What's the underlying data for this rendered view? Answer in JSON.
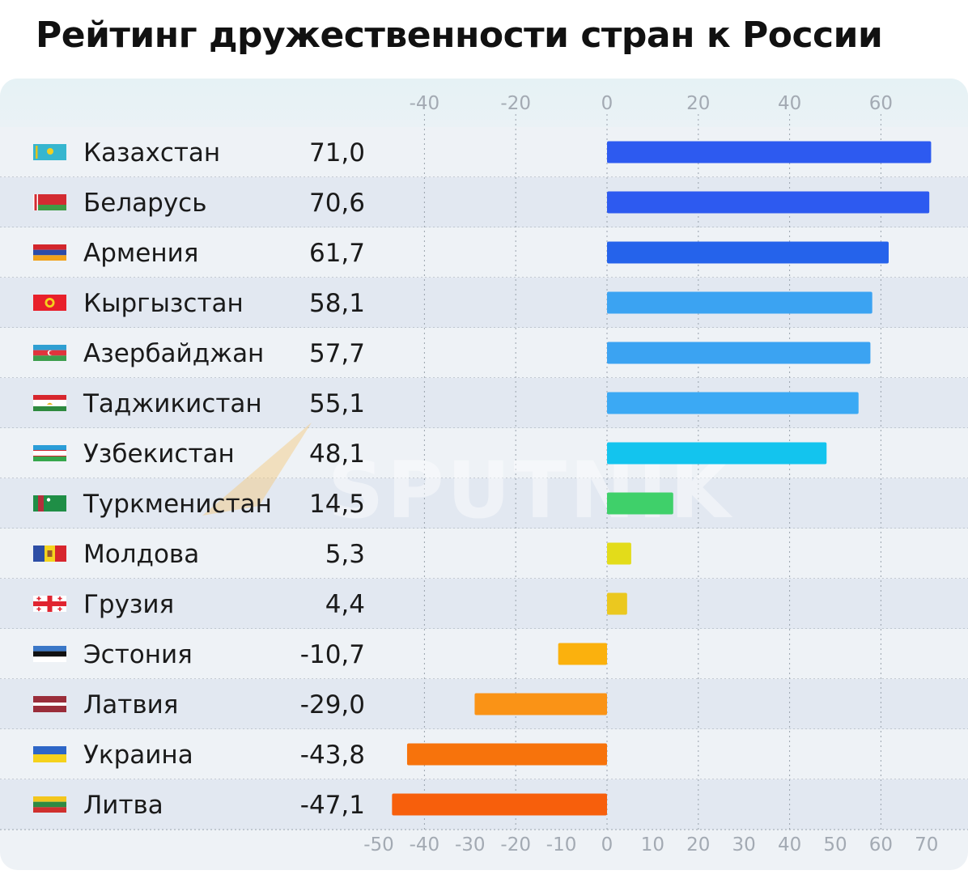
{
  "title": "Рейтинг дружественности стран к России",
  "watermark": "SPUTNIK",
  "chart_data": {
    "type": "bar",
    "orientation": "horizontal",
    "categories": [
      "Казахстан",
      "Беларусь",
      "Армения",
      "Кыргызстан",
      "Азербайджан",
      "Таджикистан",
      "Узбекистан",
      "Туркменистан",
      "Молдова",
      "Грузия",
      "Эстония",
      "Латвия",
      "Украина",
      "Литва"
    ],
    "value_labels": [
      "71,0",
      "70,6",
      "61,7",
      "58,1",
      "57,7",
      "55,1",
      "48,1",
      "14,5",
      "5,3",
      "4,4",
      "-10,7",
      "-29,0",
      "-43,8",
      "-47,1"
    ],
    "values": [
      71.0,
      70.6,
      61.7,
      58.1,
      57.7,
      55.1,
      48.1,
      14.5,
      5.3,
      4.4,
      -10.7,
      -29.0,
      -43.8,
      -47.1
    ],
    "bar_colors": [
      "#2d5af0",
      "#2d5af0",
      "#2563eb",
      "#3ba3f2",
      "#3ba3f2",
      "#3ba9f4",
      "#13c4ee",
      "#3fd06a",
      "#e3dc1a",
      "#ebc81f",
      "#fbb10d",
      "#fa9316",
      "#f7730c",
      "#f75f0c"
    ],
    "flags": [
      "flag-kazakhstan",
      "flag-belarus",
      "flag-armenia",
      "flag-kyrgyzstan",
      "flag-azerbaijan",
      "flag-tajikistan",
      "flag-uzbekistan",
      "flag-turkmenistan",
      "flag-moldova",
      "flag-georgia",
      "flag-estonia",
      "flag-latvia",
      "flag-ukraine",
      "flag-lithuania"
    ],
    "top_ticks": [
      "-40",
      "-20",
      "0",
      "20",
      "40",
      "60"
    ],
    "bottom_ticks": [
      "-50",
      "-40",
      "-30",
      "-20",
      "-10",
      "0",
      "10",
      "20",
      "30",
      "40",
      "50",
      "60",
      "70"
    ],
    "xlim": [
      -50,
      70
    ],
    "grid": "vertical dotted lines at -40, -20, 0, 20, 40, 60",
    "row_stripes": [
      "#eef2f6",
      "#e2e8f1"
    ]
  }
}
